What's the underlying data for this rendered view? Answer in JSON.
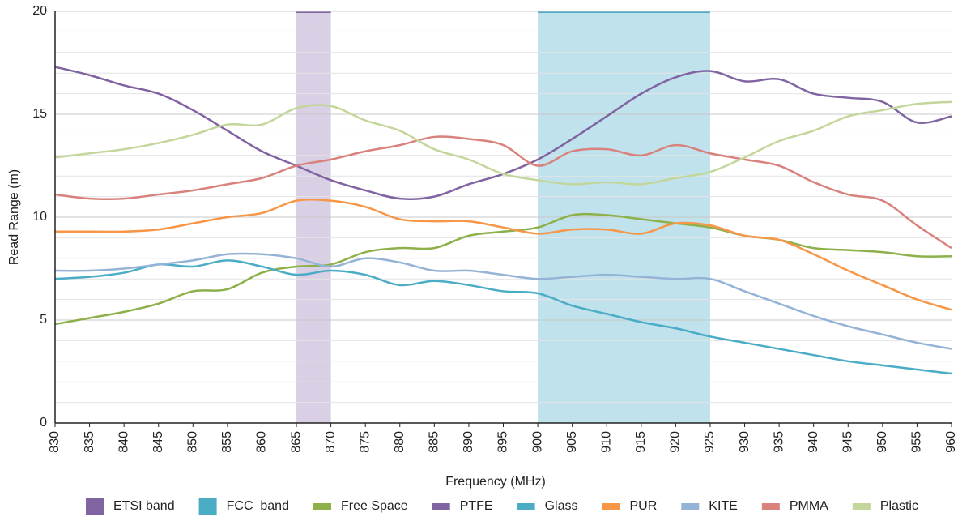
{
  "chart_data": {
    "type": "line",
    "x_label": "Frequency (MHz)",
    "y_label": "Read Range (m)",
    "x": [
      830,
      835,
      840,
      845,
      850,
      855,
      860,
      865,
      870,
      875,
      880,
      885,
      890,
      895,
      900,
      905,
      910,
      915,
      920,
      925,
      930,
      935,
      940,
      945,
      950,
      955,
      960
    ],
    "xlim": [
      830,
      960
    ],
    "xticks": [
      830,
      835,
      840,
      845,
      850,
      855,
      860,
      865,
      870,
      875,
      880,
      885,
      890,
      895,
      900,
      905,
      910,
      915,
      920,
      925,
      930,
      935,
      940,
      945,
      950,
      955,
      960
    ],
    "ylim": [
      0,
      20
    ],
    "yticks": [
      0,
      5,
      10,
      15,
      20
    ],
    "y_minor_ticks": [
      1,
      2,
      3,
      4,
      6,
      7,
      8,
      9,
      11,
      12,
      13,
      14,
      16,
      17,
      18,
      19
    ],
    "grid": true,
    "bands": [
      {
        "name": "ETSI band",
        "color": "#8064a2",
        "fill": "#d9d0e5",
        "range": [
          865,
          870
        ]
      },
      {
        "name": "FCC  band",
        "color": "#4bacc6",
        "fill": "#bfe2ec",
        "range": [
          900,
          925
        ]
      }
    ],
    "series": [
      {
        "name": "Free Space",
        "color": "#8db04a",
        "values": [
          4.8,
          5.1,
          5.4,
          5.8,
          6.4,
          6.5,
          7.3,
          7.6,
          7.7,
          8.3,
          8.5,
          8.5,
          9.1,
          9.3,
          9.5,
          10.1,
          10.1,
          9.9,
          9.7,
          9.5,
          9.1,
          8.9,
          8.5,
          8.4,
          8.3,
          8.1,
          8.1
        ]
      },
      {
        "name": "PTFE",
        "color": "#8064a2",
        "values": [
          17.3,
          16.9,
          16.4,
          16.0,
          15.2,
          14.2,
          13.2,
          12.5,
          11.8,
          11.3,
          10.9,
          11.0,
          11.6,
          12.1,
          12.8,
          13.8,
          14.9,
          16.0,
          16.8,
          17.1,
          16.6,
          16.7,
          16.0,
          15.8,
          15.6,
          14.6,
          14.9
        ]
      },
      {
        "name": "Glass",
        "color": "#4bacc6",
        "values": [
          7.0,
          7.1,
          7.3,
          7.7,
          7.6,
          7.9,
          7.6,
          7.2,
          7.4,
          7.2,
          6.7,
          6.9,
          6.7,
          6.4,
          6.3,
          5.7,
          5.3,
          4.9,
          4.6,
          4.2,
          3.9,
          3.6,
          3.3,
          3.0,
          2.8,
          2.6,
          2.4
        ]
      },
      {
        "name": "PUR",
        "color": "#f79646",
        "values": [
          9.3,
          9.3,
          9.3,
          9.4,
          9.7,
          10.0,
          10.2,
          10.8,
          10.8,
          10.5,
          9.9,
          9.8,
          9.8,
          9.5,
          9.2,
          9.4,
          9.4,
          9.2,
          9.7,
          9.6,
          9.1,
          8.9,
          8.2,
          7.4,
          6.7,
          6.0,
          5.5
        ]
      },
      {
        "name": "KITE",
        "color": "#95b3d7",
        "values": [
          7.4,
          7.4,
          7.5,
          7.7,
          7.9,
          8.2,
          8.2,
          8.0,
          7.6,
          8.0,
          7.8,
          7.4,
          7.4,
          7.2,
          7.0,
          7.1,
          7.2,
          7.1,
          7.0,
          7.0,
          6.4,
          5.8,
          5.2,
          4.7,
          4.3,
          3.9,
          3.6
        ]
      },
      {
        "name": "PMMA",
        "color": "#d9827d",
        "values": [
          11.1,
          10.9,
          10.9,
          11.1,
          11.3,
          11.6,
          11.9,
          12.5,
          12.8,
          13.2,
          13.5,
          13.9,
          13.8,
          13.5,
          12.5,
          13.2,
          13.3,
          13.0,
          13.5,
          13.1,
          12.8,
          12.5,
          11.7,
          11.1,
          10.8,
          9.6,
          8.5
        ]
      },
      {
        "name": "Plastic",
        "color": "#c3d69b",
        "values": [
          12.9,
          13.1,
          13.3,
          13.6,
          14.0,
          14.5,
          14.5,
          15.3,
          15.4,
          14.7,
          14.2,
          13.3,
          12.8,
          12.1,
          11.8,
          11.6,
          11.7,
          11.6,
          11.9,
          12.2,
          12.9,
          13.7,
          14.2,
          14.9,
          15.2,
          15.5,
          15.6
        ]
      }
    ]
  }
}
